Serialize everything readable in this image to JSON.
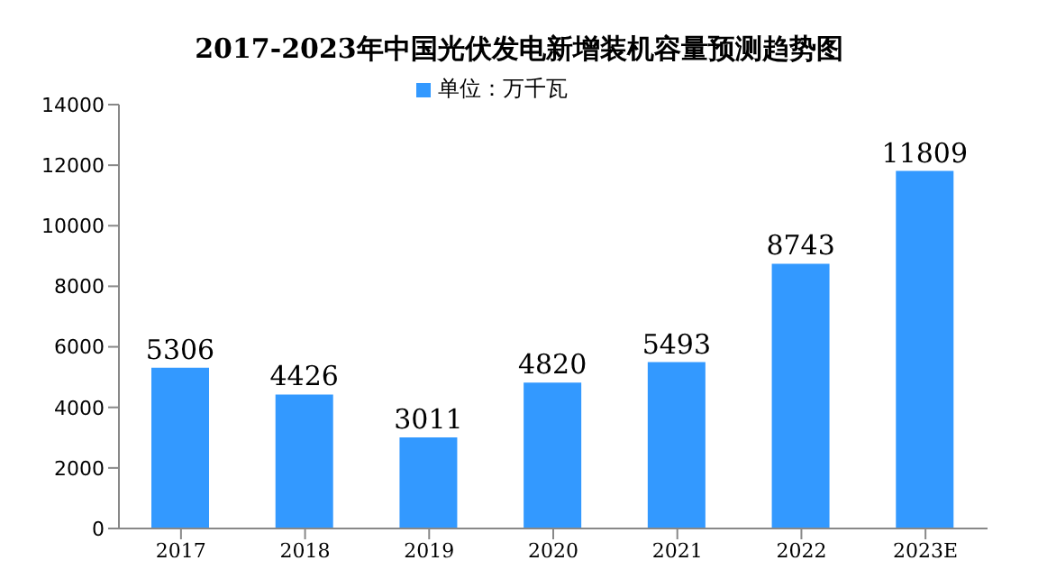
{
  "chart_data": {
    "type": "bar",
    "title": "2017-2023年中国光伏发电新增装机容量预测趋势图",
    "categories": [
      "2017",
      "2018",
      "2019",
      "2020",
      "2021",
      "2022",
      "2023E"
    ],
    "series": [
      {
        "name": "单位：万千瓦",
        "color": "#3399ff",
        "values": [
          5306,
          4426,
          3011,
          4820,
          5493,
          8743,
          11809
        ]
      }
    ],
    "ylim": [
      0,
      14000
    ],
    "yticks": [
      0,
      2000,
      4000,
      6000,
      8000,
      10000,
      12000,
      14000
    ],
    "grid": false,
    "legend": "top",
    "data_labels": true
  }
}
